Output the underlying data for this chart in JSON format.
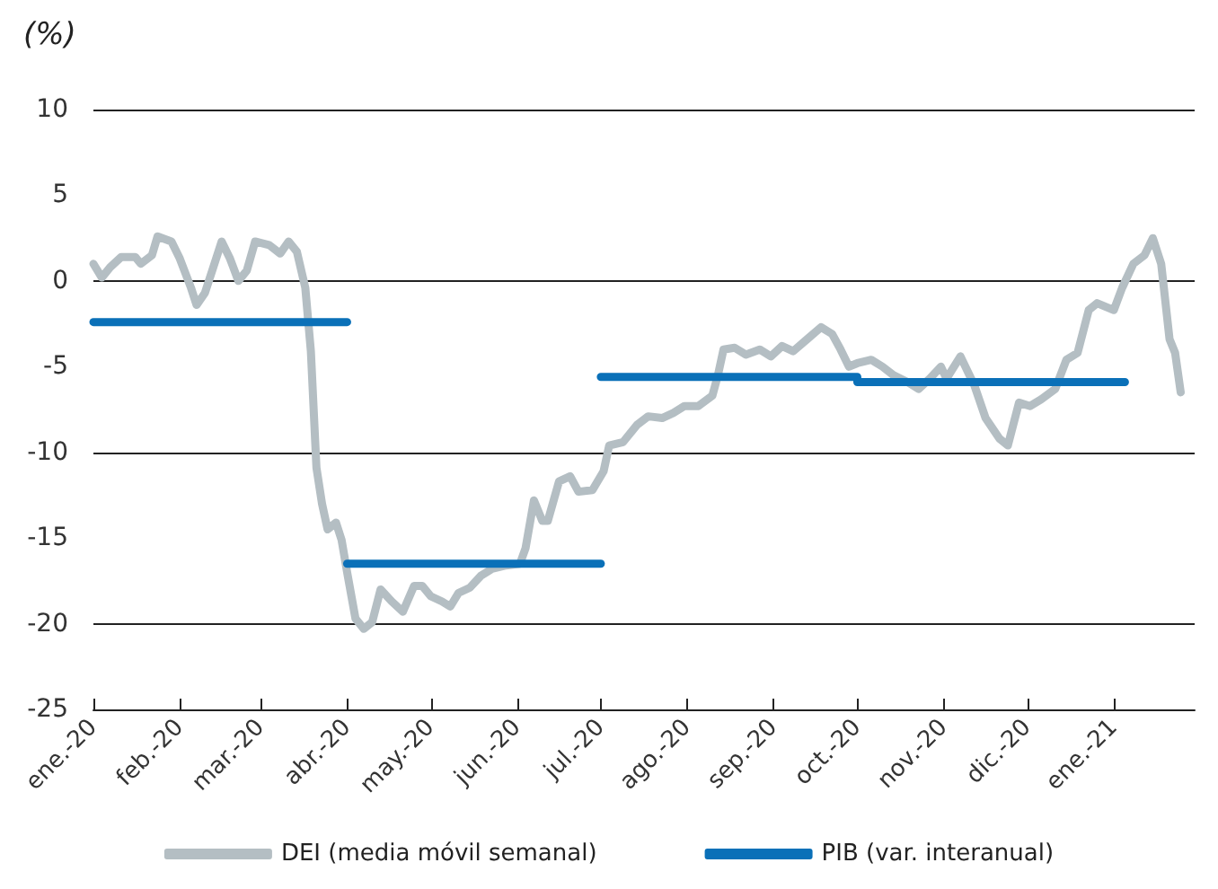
{
  "chart_data": {
    "type": "line",
    "ylabel": "(%)",
    "xlim": [
      "2020-01-01",
      "2021-01-30"
    ],
    "ylim": [
      -25,
      10
    ],
    "yticks": [
      -25,
      -20,
      -15,
      -10,
      -5,
      0,
      5,
      10
    ],
    "xticks": [
      {
        "value": "2020-01-01",
        "label": "ene.-20"
      },
      {
        "value": "2020-02-01",
        "label": "feb.-20"
      },
      {
        "value": "2020-03-01",
        "label": "mar.-20"
      },
      {
        "value": "2020-04-01",
        "label": "abr.-20"
      },
      {
        "value": "2020-05-01",
        "label": "may.-20"
      },
      {
        "value": "2020-06-01",
        "label": "jun.-20"
      },
      {
        "value": "2020-07-01",
        "label": "jul.-20"
      },
      {
        "value": "2020-08-01",
        "label": "ago.-20"
      },
      {
        "value": "2020-09-01",
        "label": "sep.-20"
      },
      {
        "value": "2020-10-01",
        "label": "oct.-20"
      },
      {
        "value": "2020-11-01",
        "label": "nov.-20"
      },
      {
        "value": "2020-12-01",
        "label": "dic.-20"
      },
      {
        "value": "2021-01-01",
        "label": "ene.-21"
      }
    ],
    "grid": "y",
    "legend": "bottom",
    "marker": "none",
    "line_style": "solid",
    "series": [
      {
        "name": "DEI (media móvil semanal)",
        "color": "#b4bec3",
        "x": [
          "2020-01-01",
          "2020-01-04",
          "2020-01-07",
          "2020-01-11",
          "2020-01-16",
          "2020-01-18",
          "2020-01-22",
          "2020-01-24",
          "2020-01-29",
          "2020-02-01",
          "2020-02-05",
          "2020-02-07",
          "2020-02-10",
          "2020-02-13",
          "2020-02-16",
          "2020-02-19",
          "2020-02-22",
          "2020-02-25",
          "2020-02-28",
          "2020-03-04",
          "2020-03-08",
          "2020-03-11",
          "2020-03-14",
          "2020-03-17",
          "2020-03-19",
          "2020-03-21",
          "2020-03-23",
          "2020-03-25",
          "2020-03-28",
          "2020-03-30",
          "2020-04-01",
          "2020-04-04",
          "2020-04-07",
          "2020-04-10",
          "2020-04-13",
          "2020-04-17",
          "2020-04-21",
          "2020-04-25",
          "2020-04-28",
          "2020-05-01",
          "2020-05-05",
          "2020-05-08",
          "2020-05-11",
          "2020-05-15",
          "2020-05-19",
          "2020-05-23",
          "2020-05-28",
          "2020-06-02",
          "2020-06-04",
          "2020-06-07",
          "2020-06-10",
          "2020-06-12",
          "2020-06-16",
          "2020-06-20",
          "2020-06-23",
          "2020-06-28",
          "2020-07-02",
          "2020-07-04",
          "2020-07-09",
          "2020-07-14",
          "2020-07-18",
          "2020-07-23",
          "2020-07-27",
          "2020-07-31",
          "2020-08-05",
          "2020-08-10",
          "2020-08-12",
          "2020-08-14",
          "2020-08-18",
          "2020-08-22",
          "2020-08-27",
          "2020-08-31",
          "2020-09-04",
          "2020-09-08",
          "2020-09-13",
          "2020-09-18",
          "2020-09-22",
          "2020-09-25",
          "2020-09-28",
          "2020-10-01",
          "2020-10-06",
          "2020-10-10",
          "2020-10-14",
          "2020-10-19",
          "2020-10-23",
          "2020-10-27",
          "2020-10-31",
          "2020-11-02",
          "2020-11-07",
          "2020-11-12",
          "2020-11-16",
          "2020-11-21",
          "2020-11-24",
          "2020-11-28",
          "2020-12-02",
          "2020-12-06",
          "2020-12-11",
          "2020-12-15",
          "2020-12-19",
          "2020-12-23",
          "2020-12-26",
          "2021-01-01",
          "2021-01-04",
          "2021-01-08",
          "2021-01-12",
          "2021-01-15",
          "2021-01-18",
          "2021-01-21",
          "2021-01-23",
          "2021-01-25"
        ],
        "values": [
          1.0,
          0.2,
          0.8,
          1.4,
          1.4,
          1.0,
          1.5,
          2.6,
          2.3,
          1.3,
          -0.4,
          -1.4,
          -0.7,
          0.8,
          2.3,
          1.3,
          0.0,
          0.6,
          2.3,
          2.1,
          1.6,
          2.3,
          1.7,
          -0.4,
          -4.1,
          -10.9,
          -13.0,
          -14.5,
          -14.1,
          -15.1,
          -17.0,
          -19.7,
          -20.3,
          -19.9,
          -18.0,
          -18.7,
          -19.3,
          -17.8,
          -17.8,
          -18.4,
          -18.7,
          -19.0,
          -18.2,
          -17.9,
          -17.2,
          -16.8,
          -16.6,
          -16.5,
          -15.6,
          -12.8,
          -14.0,
          -14.0,
          -11.7,
          -11.4,
          -12.3,
          -12.2,
          -11.1,
          -9.6,
          -9.4,
          -8.4,
          -7.9,
          -8.0,
          -7.7,
          -7.3,
          -7.3,
          -6.7,
          -5.5,
          -4.0,
          -3.9,
          -4.3,
          -4.0,
          -4.4,
          -3.8,
          -4.1,
          -3.4,
          -2.7,
          -3.1,
          -4.0,
          -5.0,
          -4.8,
          -4.6,
          -5.0,
          -5.5,
          -5.9,
          -6.3,
          -5.7,
          -5.0,
          -5.7,
          -4.4,
          -6.1,
          -8.0,
          -9.2,
          -9.6,
          -7.1,
          -7.3,
          -6.9,
          -6.3,
          -4.6,
          -4.2,
          -1.7,
          -1.3,
          -1.7,
          -0.4,
          1.0,
          1.5,
          2.5,
          1.0,
          -3.4,
          -4.2,
          -6.5
        ]
      },
      {
        "name": "PIB (var. interanual)",
        "color": "#0a70b8",
        "x": [
          "2020-01-01",
          "2020-04-01"
        ],
        "values": [
          -2.4,
          -2.4
        ]
      },
      {
        "color": "#0a70b8",
        "x": [
          "2020-04-01",
          "2020-07-01"
        ],
        "values": [
          -16.5,
          -16.5
        ]
      },
      {
        "color": "#0a70b8",
        "x": [
          "2020-07-01",
          "2020-10-01",
          "2020-10-01",
          "2021-01-05"
        ],
        "values": [
          -5.6,
          -5.6,
          -5.9,
          -5.9
        ]
      }
    ]
  }
}
